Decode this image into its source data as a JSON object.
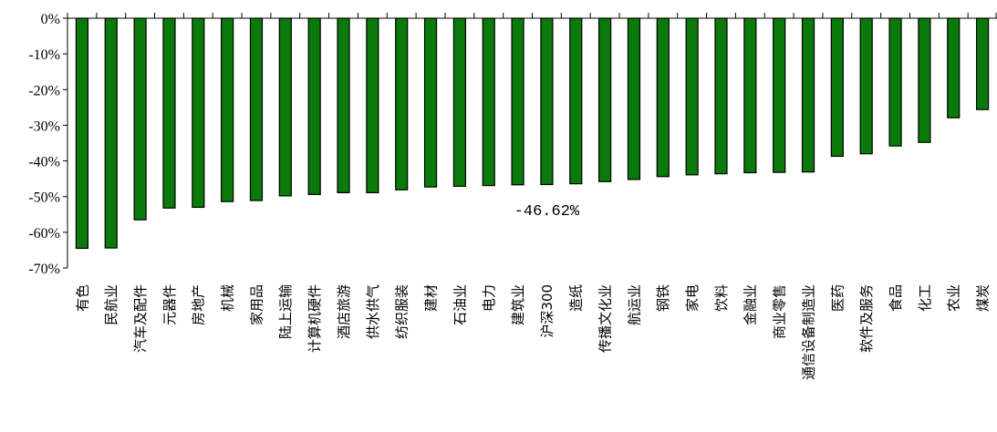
{
  "chart_data": {
    "type": "bar",
    "categories": [
      "有色",
      "民航业",
      "汽车及配件",
      "元器件",
      "房地产",
      "机械",
      "家用品",
      "陆上运输",
      "计算机硬件",
      "酒店旅游",
      "供水供气",
      "纺织服装",
      "建材",
      "石油业",
      "电力",
      "建筑业",
      "沪深300",
      "造纸",
      "传播文化业",
      "航运业",
      "钢铁",
      "家电",
      "饮料",
      "金融业",
      "商业零售",
      "通信设备制造业",
      "医药",
      "软件及服务",
      "食品",
      "化工",
      "农业",
      "煤炭"
    ],
    "values": [
      -64.5,
      -64.4,
      -56.5,
      -53.2,
      -53.0,
      -51.4,
      -51.1,
      -49.8,
      -49.4,
      -48.9,
      -48.9,
      -48.1,
      -47.3,
      -47.1,
      -46.9,
      -46.7,
      -46.62,
      -46.4,
      -45.8,
      -45.2,
      -44.4,
      -43.9,
      -43.6,
      -43.3,
      -43.2,
      -43.1,
      -38.7,
      -38.0,
      -35.8,
      -34.8,
      -27.9,
      -25.6
    ],
    "yticks": [
      "0%",
      "-10%",
      "-20%",
      "-30%",
      "-40%",
      "-50%",
      "-60%",
      "-70%"
    ],
    "ylim": [
      -70,
      0
    ],
    "bar_color": "#0a7a0a",
    "annotation": {
      "text": "-46.62%",
      "category": "沪深300"
    },
    "title": "",
    "xlabel": "",
    "ylabel": "",
    "grid": false,
    "legend": "none"
  }
}
